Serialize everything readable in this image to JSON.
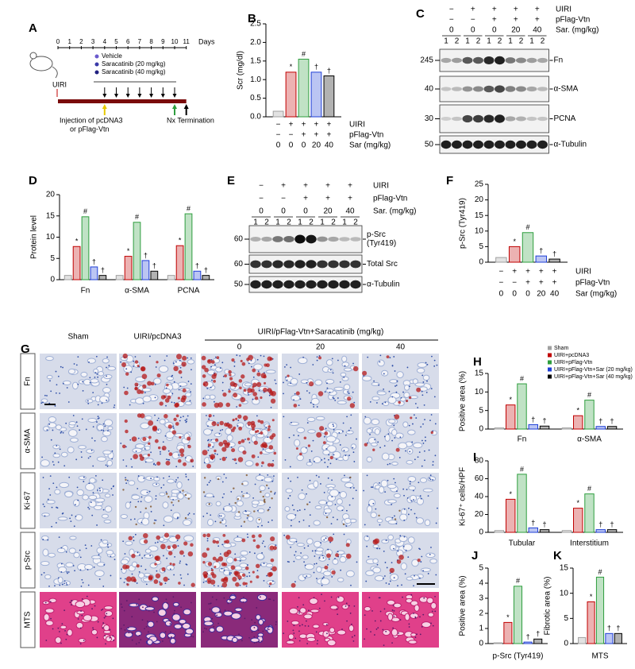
{
  "panel_labels": [
    "A",
    "B",
    "C",
    "D",
    "E",
    "F",
    "G",
    "H",
    "I",
    "J",
    "K"
  ],
  "timeline": {
    "days": [
      0,
      1,
      2,
      3,
      4,
      5,
      6,
      7,
      8,
      9,
      10,
      11
    ],
    "unit": "Days",
    "legend": [
      {
        "label": "Vehicle",
        "color": "#6a5acd"
      },
      {
        "label": "Saracatinib (20 mg/kg)",
        "color": "#3a3aa8"
      },
      {
        "label": "Saracatinib (40 mg/kg)",
        "color": "#202080"
      }
    ],
    "start": "UIRI",
    "injection": [
      "Injection of pcDNA3",
      "or pFlag-Vtn"
    ],
    "end": "Nx Termination"
  },
  "blots": [
    {
      "headers": [
        {
          "label": "UIRI",
          "values": [
            "−",
            "+",
            "+",
            "+",
            "+"
          ]
        },
        {
          "label": "pFlag-Vtn",
          "values": [
            "−",
            "−",
            "+",
            "+",
            "+"
          ]
        },
        {
          "label": "Sar. (mg/kg)",
          "values": [
            0,
            0,
            0,
            20,
            40
          ]
        }
      ],
      "lanes": [
        1,
        2
      ],
      "rows": [
        {
          "mw": 245,
          "label": [
            "Fn"
          ]
        },
        {
          "mw": 40,
          "label": [
            "α-SMA"
          ]
        },
        {
          "mw": 30,
          "label": [
            "PCNA"
          ]
        },
        {
          "mw": 50,
          "label": [
            "α-Tubulin"
          ]
        }
      ]
    },
    {
      "headers": [
        {
          "label": "UIRI",
          "values": [
            "−",
            "+",
            "+",
            "+",
            "+"
          ]
        },
        {
          "label": "pFlag-Vtn",
          "values": [
            "−",
            "−",
            "+",
            "+",
            "+"
          ]
        },
        {
          "label": "Sar. (mg/kg)",
          "values": [
            0,
            0,
            0,
            20,
            40
          ]
        }
      ],
      "lanes": [
        1,
        2
      ],
      "rows": [
        {
          "mw": 60,
          "label": [
            "p-Src",
            "(Tyr419)"
          ]
        },
        {
          "mw": 60,
          "label": [
            "Total Src"
          ]
        },
        {
          "mw": 50,
          "label": [
            "α-Tubulin"
          ]
        }
      ]
    }
  ],
  "histology": {
    "columns": [
      "Sham",
      "UIRI/pcDNA3"
    ],
    "group": "UIRI/pFlag-Vtn+Saracatinib (mg/kg)",
    "doses": [
      0,
      20,
      40
    ],
    "rows": [
      "Fn",
      "α-SMA",
      "Ki-67",
      "p-Src",
      "MTS"
    ]
  },
  "chart_data": [
    {
      "type": "bar",
      "ylabel": "Scr (mg/dl)",
      "values": [
        0.15,
        1.2,
        1.55,
        1.2,
        1.1
      ],
      "colors": [
        "#a0a0a0",
        "#c00000",
        "#2e9e3e",
        "#1f3fd6",
        "#000000"
      ],
      "annotations": [
        null,
        "*",
        "#",
        "†",
        "†"
      ],
      "ylim": [
        0,
        2.5
      ],
      "yticks": [
        {
          "value": 0,
          "label": "0.0"
        },
        0.5,
        {
          "value": 1,
          "label": "1.0"
        },
        1.5,
        {
          "value": 2,
          "label": "2.0"
        },
        2.5
      ],
      "conditions": [
        {
          "label": "UIRI",
          "values": [
            "−",
            "+",
            "+",
            "+",
            "+"
          ]
        },
        {
          "label": "pFlag-Vtn",
          "values": [
            "−",
            "−",
            "+",
            "+",
            "+"
          ]
        },
        {
          "label": "Sar (mg/kg)",
          "values": [
            0,
            0,
            0,
            20,
            40
          ]
        }
      ]
    },
    {
      "type": "bar",
      "ylabel": "Protein level",
      "categories": [
        "Fn",
        "α-SMA",
        "PCNA"
      ],
      "series": [
        {
          "color": "#a0a0a0",
          "values": [
            1,
            1,
            1
          ]
        },
        {
          "color": "#c00000",
          "values": [
            7.8,
            5.5,
            8
          ],
          "annotations": [
            "*",
            "*",
            "*"
          ]
        },
        {
          "color": "#2e9e3e",
          "values": [
            14.8,
            13.5,
            15.5
          ],
          "annotations": [
            "#",
            "#",
            "#"
          ]
        },
        {
          "color": "#1f3fd6",
          "values": [
            3,
            4.5,
            2
          ],
          "annotations": [
            "†",
            "†",
            "†"
          ]
        },
        {
          "color": "#000000",
          "values": [
            1,
            2,
            1
          ],
          "annotations": [
            "†",
            "†",
            "†"
          ]
        }
      ],
      "ylim": [
        0,
        20
      ],
      "yticks": [
        0,
        5,
        10,
        15,
        20
      ]
    },
    {
      "type": "bar",
      "ylabel": "p-Src (Tyr419)",
      "values": [
        1.5,
        5,
        9.5,
        2,
        1
      ],
      "colors": [
        "#a0a0a0",
        "#c00000",
        "#2e9e3e",
        "#1f3fd6",
        "#000000"
      ],
      "annotations": [
        null,
        "*",
        "#",
        "†",
        "†"
      ],
      "ylim": [
        0,
        25
      ],
      "yticks": [
        0,
        5,
        10,
        15,
        20,
        25
      ],
      "conditions": [
        {
          "label": "UIRI",
          "values": [
            "−",
            "+",
            "+",
            "+",
            "+"
          ]
        },
        {
          "label": "pFlag-Vtn",
          "values": [
            "−",
            "−",
            "+",
            "+",
            "+"
          ]
        },
        {
          "label": "Sar (mg/kg)",
          "values": [
            0,
            0,
            0,
            20,
            40
          ]
        }
      ]
    },
    {
      "type": "bar",
      "ylabel": "Positive area (%)",
      "categories": [
        "Fn",
        "α-SMA"
      ],
      "series": [
        {
          "name": "Sham",
          "color": "#a0a0a0",
          "values": [
            0.3,
            0.3
          ]
        },
        {
          "name": "UIRI+pcDNA3",
          "color": "#c00000",
          "values": [
            6.5,
            3.6
          ],
          "annotations": [
            "*",
            "*"
          ]
        },
        {
          "name": "UIRI+pFlag-Vtn",
          "color": "#2e9e3e",
          "values": [
            12.2,
            7.8
          ],
          "annotations": [
            "#",
            "#"
          ]
        },
        {
          "name": "UIRI+pFlag-Vtn+Sar (20 mg/kg)",
          "color": "#1f3fd6",
          "values": [
            1.2,
            0.7
          ],
          "annotations": [
            "†",
            "†"
          ]
        },
        {
          "name": "UIRI+pFlag-Vtn+Sar (40 mg/kg)",
          "color": "#000000",
          "values": [
            0.8,
            0.7
          ],
          "annotations": [
            "†",
            "†"
          ]
        }
      ],
      "ylim": [
        0,
        15
      ],
      "yticks": [
        0,
        5,
        10,
        15
      ]
    },
    {
      "type": "bar",
      "ylabel": "Ki-67⁺ cells/HPF",
      "categories": [
        "Tubular",
        "Interstitium"
      ],
      "series": [
        {
          "color": "#a0a0a0",
          "values": [
            2,
            2
          ]
        },
        {
          "color": "#c00000",
          "values": [
            37,
            27
          ],
          "annotations": [
            "*",
            "*"
          ]
        },
        {
          "color": "#2e9e3e",
          "values": [
            65,
            43
          ],
          "annotations": [
            "#",
            "#"
          ]
        },
        {
          "color": "#1f3fd6",
          "values": [
            5,
            3
          ],
          "annotations": [
            "†",
            "†"
          ]
        },
        {
          "color": "#000000",
          "values": [
            3,
            3
          ],
          "annotations": [
            "†",
            "†"
          ]
        }
      ],
      "ylim": [
        0,
        80
      ],
      "yticks": [
        0,
        20,
        40,
        60,
        80
      ]
    },
    {
      "type": "bar",
      "ylabel": "Positive area (%)",
      "categories": [
        "p-Src (Tyr419)"
      ],
      "series": [
        {
          "color": "#a0a0a0",
          "values": [
            0.05
          ]
        },
        {
          "color": "#c00000",
          "values": [
            1.4
          ],
          "annotations": [
            "*"
          ]
        },
        {
          "color": "#2e9e3e",
          "values": [
            3.8
          ],
          "annotations": [
            "#"
          ]
        },
        {
          "color": "#1f3fd6",
          "values": [
            0.1
          ],
          "annotations": [
            "†"
          ]
        },
        {
          "color": "#000000",
          "values": [
            0.3
          ],
          "annotations": [
            "†"
          ]
        }
      ],
      "ylim": [
        0,
        5
      ],
      "yticks": [
        0,
        1,
        2,
        3,
        4,
        5
      ]
    },
    {
      "type": "bar",
      "ylabel": "Fibrotic area (%)",
      "categories": [
        "MTS"
      ],
      "series": [
        {
          "color": "#a0a0a0",
          "values": [
            1.2
          ]
        },
        {
          "color": "#c00000",
          "values": [
            8.3
          ],
          "annotations": [
            "*"
          ]
        },
        {
          "color": "#2e9e3e",
          "values": [
            13.2
          ],
          "annotations": [
            "#"
          ]
        },
        {
          "color": "#1f3fd6",
          "values": [
            2
          ],
          "annotations": [
            "†"
          ]
        },
        {
          "color": "#000000",
          "values": [
            2
          ],
          "annotations": [
            "†"
          ]
        }
      ],
      "ylim": [
        0,
        15
      ],
      "yticks": [
        0,
        5,
        10,
        15
      ]
    }
  ]
}
